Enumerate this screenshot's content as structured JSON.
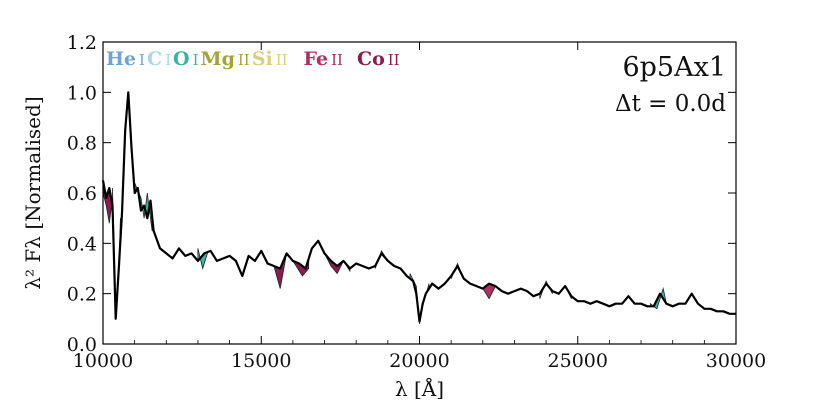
{
  "chart_data": {
    "type": "area",
    "model": "6p5Ax1",
    "time_label": "Δt = 0.0d",
    "xlabel": "λ [Å]",
    "ylabel": "λ² Fλ [Normalised]",
    "xlim": [
      10000,
      30000
    ],
    "ylim": [
      0.0,
      1.2
    ],
    "xticks": [
      10000,
      15000,
      20000,
      25000,
      30000
    ],
    "xtick_labels": [
      "10000",
      "15000",
      "20000",
      "25000",
      "30000"
    ],
    "yticks": [
      0.0,
      0.2,
      0.4,
      0.6,
      0.8,
      1.0,
      1.2
    ],
    "ytick_labels": [
      "0.0",
      "0.2",
      "0.4",
      "0.6",
      "0.8",
      "1.0",
      "1.2"
    ],
    "legend": [
      {
        "element": "He",
        "ion": "I",
        "color": "#6ea4d6"
      },
      {
        "element": "C",
        "ion": "I",
        "color": "#a8d8ea"
      },
      {
        "element": "O",
        "ion": "I",
        "color": "#3bb39e"
      },
      {
        "element": "Mg",
        "ion": "II",
        "color": "#a3a33a"
      },
      {
        "element": "Si",
        "ion": "II",
        "color": "#d8d080"
      },
      {
        "element": "Fe",
        "ion": "II",
        "color": "#b03060"
      },
      {
        "element": "Co",
        "ion": "II",
        "color": "#8a1c50"
      }
    ],
    "spectrum": {
      "name": "total",
      "color": "#000000",
      "x": [
        10000,
        10100,
        10200,
        10300,
        10400,
        10500,
        10600,
        10700,
        10800,
        10900,
        11000,
        11100,
        11200,
        11300,
        11400,
        11500,
        11600,
        11800,
        12000,
        12200,
        12400,
        12600,
        12800,
        13000,
        13200,
        13400,
        13600,
        13800,
        14000,
        14200,
        14400,
        14600,
        14800,
        15000,
        15200,
        15400,
        15600,
        15800,
        16000,
        16200,
        16400,
        16600,
        16800,
        17000,
        17200,
        17400,
        17600,
        17800,
        18000,
        18200,
        18400,
        18600,
        18800,
        19000,
        19200,
        19400,
        19600,
        19800,
        19900,
        20000,
        20100,
        20200,
        20400,
        20600,
        20800,
        21000,
        21200,
        21400,
        21600,
        21800,
        22000,
        22200,
        22400,
        22600,
        22800,
        23000,
        23200,
        23400,
        23600,
        23800,
        24000,
        24200,
        24400,
        24600,
        24800,
        25000,
        25200,
        25400,
        25600,
        25800,
        26000,
        26200,
        26400,
        26600,
        26800,
        27000,
        27200,
        27400,
        27600,
        27800,
        28000,
        28200,
        28400,
        28600,
        28800,
        29000,
        29200,
        29400,
        29600,
        29800,
        30000
      ],
      "y": [
        0.65,
        0.58,
        0.62,
        0.55,
        0.1,
        0.3,
        0.52,
        0.85,
        1.0,
        0.78,
        0.6,
        0.62,
        0.53,
        0.55,
        0.5,
        0.57,
        0.45,
        0.38,
        0.36,
        0.34,
        0.38,
        0.35,
        0.36,
        0.33,
        0.36,
        0.37,
        0.33,
        0.34,
        0.35,
        0.33,
        0.27,
        0.35,
        0.33,
        0.37,
        0.32,
        0.31,
        0.3,
        0.36,
        0.33,
        0.32,
        0.3,
        0.38,
        0.41,
        0.36,
        0.33,
        0.31,
        0.33,
        0.3,
        0.32,
        0.31,
        0.3,
        0.31,
        0.36,
        0.33,
        0.31,
        0.3,
        0.27,
        0.25,
        0.2,
        0.09,
        0.16,
        0.2,
        0.24,
        0.22,
        0.24,
        0.27,
        0.31,
        0.26,
        0.24,
        0.23,
        0.22,
        0.24,
        0.23,
        0.21,
        0.2,
        0.21,
        0.22,
        0.21,
        0.19,
        0.2,
        0.24,
        0.21,
        0.2,
        0.23,
        0.19,
        0.17,
        0.17,
        0.16,
        0.17,
        0.16,
        0.15,
        0.16,
        0.16,
        0.19,
        0.16,
        0.16,
        0.15,
        0.15,
        0.2,
        0.16,
        0.15,
        0.16,
        0.16,
        0.2,
        0.16,
        0.14,
        0.14,
        0.13,
        0.13,
        0.12,
        0.12
      ]
    },
    "contributions": [
      {
        "species": "He I",
        "color": "#6ea4d6",
        "points": [
          [
            10300,
            0.62
          ],
          [
            10400,
            0.1
          ],
          [
            10500,
            0.28
          ],
          [
            10550,
            0.5
          ]
        ]
      },
      {
        "species": "He I",
        "color": "#6ea4d6",
        "points": [
          [
            19700,
            0.28
          ],
          [
            19900,
            0.23
          ],
          [
            20000,
            0.08
          ],
          [
            20100,
            0.15
          ],
          [
            20300,
            0.24
          ]
        ]
      },
      {
        "species": "O I",
        "color": "#3bb39e",
        "points": [
          [
            11000,
            0.64
          ],
          [
            11200,
            0.58
          ],
          [
            11300,
            0.5
          ],
          [
            11400,
            0.6
          ],
          [
            11550,
            0.45
          ]
        ]
      },
      {
        "species": "O I",
        "color": "#3bb39e",
        "points": [
          [
            13000,
            0.38
          ],
          [
            13150,
            0.3
          ],
          [
            13300,
            0.36
          ]
        ]
      },
      {
        "species": "O I",
        "color": "#3bb39e",
        "points": [
          [
            27300,
            0.16
          ],
          [
            27500,
            0.14
          ],
          [
            27700,
            0.22
          ],
          [
            27800,
            0.16
          ]
        ]
      },
      {
        "species": "Mg II",
        "color": "#a3a33a",
        "points": [
          [
            18600,
            0.3
          ],
          [
            18800,
            0.37
          ],
          [
            19000,
            0.33
          ]
        ]
      },
      {
        "species": "Mg II",
        "color": "#a3a33a",
        "points": [
          [
            21000,
            0.26
          ],
          [
            21200,
            0.32
          ],
          [
            21400,
            0.26
          ]
        ]
      },
      {
        "species": "Mg II",
        "color": "#a3a33a",
        "points": [
          [
            23800,
            0.18
          ],
          [
            24000,
            0.25
          ],
          [
            24200,
            0.2
          ]
        ]
      },
      {
        "species": "Co II",
        "color": "#8a1c50",
        "points": [
          [
            10000,
            0.6
          ],
          [
            10100,
            0.55
          ],
          [
            10200,
            0.48
          ],
          [
            10300,
            0.58
          ]
        ]
      },
      {
        "species": "Co II",
        "color": "#8a1c50",
        "points": [
          [
            15400,
            0.31
          ],
          [
            15600,
            0.22
          ],
          [
            15800,
            0.36
          ],
          [
            16000,
            0.33
          ],
          [
            16300,
            0.27
          ],
          [
            16500,
            0.3
          ]
        ]
      },
      {
        "species": "Co II",
        "color": "#8a1c50",
        "points": [
          [
            17000,
            0.36
          ],
          [
            17200,
            0.31
          ],
          [
            17400,
            0.28
          ],
          [
            17600,
            0.33
          ],
          [
            17800,
            0.29
          ]
        ]
      },
      {
        "species": "Fe II",
        "color": "#b03060",
        "points": [
          [
            21800,
            0.23
          ],
          [
            22000,
            0.22
          ],
          [
            22200,
            0.18
          ],
          [
            22400,
            0.23
          ]
        ]
      },
      {
        "species": "Fe II",
        "color": "#b03060",
        "points": [
          [
            24400,
            0.2
          ],
          [
            24600,
            0.23
          ],
          [
            24800,
            0.18
          ]
        ]
      }
    ]
  }
}
